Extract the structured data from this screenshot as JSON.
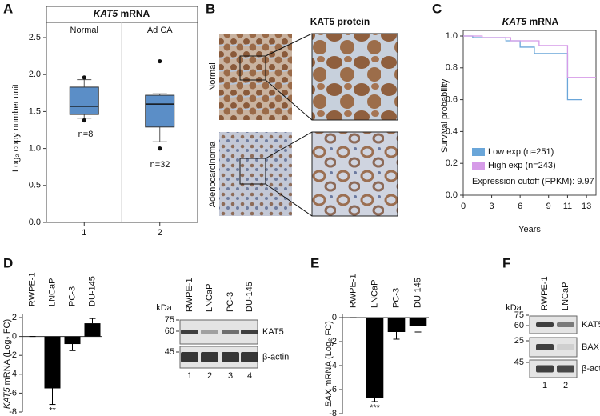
{
  "panel_letters": [
    "A",
    "B",
    "C",
    "D",
    "E",
    "F"
  ],
  "panel_b": {
    "title": "KAT5 protein",
    "rows": [
      "Normal",
      "Adenocarcinoma"
    ]
  },
  "blot_d": {
    "unit": "kDa",
    "lanes": [
      "RWPE-1",
      "LNCaP",
      "PC-3",
      "DU-145"
    ],
    "markers": [
      75,
      60,
      45
    ],
    "bands": [
      "KAT5",
      "β-actin"
    ],
    "lane_numbers": [
      1,
      2,
      3,
      4
    ]
  },
  "blot_f": {
    "unit": "kDa",
    "lanes": [
      "RWPE-1",
      "LNCaP"
    ],
    "markers": [
      75,
      60,
      25,
      45
    ],
    "bands": [
      "KAT5",
      "BAX",
      "β-actin"
    ],
    "lane_numbers": [
      1,
      2
    ]
  },
  "chart_data": [
    {
      "type": "box",
      "title": "KAT5 mRNA",
      "ylabel": "Log₂ copy number unit",
      "categories": [
        "1",
        "2"
      ],
      "group_labels": [
        "Normal",
        "Ad CA"
      ],
      "color": "#5b8ec7",
      "boxes": [
        {
          "whislo": 1.41,
          "q1": 1.46,
          "median": 1.57,
          "q3": 1.83,
          "whishi": 1.93,
          "fliers": [
            1.96,
            1.38
          ]
        },
        {
          "whislo": 1.09,
          "q1": 1.29,
          "median": 1.6,
          "q3": 1.72,
          "whishi": 1.74,
          "fliers": [
            2.18,
            1.0
          ]
        }
      ],
      "annotations": [
        "n=8",
        "n=32"
      ],
      "ylim": [
        0,
        2.5
      ],
      "yticks": [
        {
          "value": 0,
          "label": "0.0"
        },
        0.5,
        {
          "value": 1,
          "label": "1.0"
        },
        1.5,
        {
          "value": 2,
          "label": "2.0"
        },
        2.5
      ]
    },
    {
      "type": "line",
      "title": "KAT5 mRNA",
      "xlabel": "Years",
      "ylabel": "Survival probability",
      "xlim": [
        0,
        14
      ],
      "xticks": [
        0,
        3,
        6,
        9,
        11,
        13
      ],
      "ylim": [
        0,
        1
      ],
      "yticks": [
        {
          "value": 0,
          "label": "0.0"
        },
        0.2,
        0.4,
        0.6,
        0.8,
        {
          "value": 1,
          "label": "1.0"
        }
      ],
      "series": [
        {
          "name": "Low exp (n=251)",
          "color": "#6aa6d9",
          "x": [
            0,
            1,
            1,
            4.5,
            4.5,
            6,
            6,
            7.5,
            7.5,
            11,
            11,
            12.5
          ],
          "values": [
            1,
            1,
            0.99,
            0.99,
            0.97,
            0.97,
            0.93,
            0.93,
            0.89,
            0.89,
            0.6,
            0.6
          ]
        },
        {
          "name": "High exp (n=243)",
          "color": "#d69be8",
          "x": [
            0,
            2,
            2,
            5,
            5,
            8,
            8,
            11,
            11,
            14
          ],
          "values": [
            1,
            1,
            0.99,
            0.99,
            0.97,
            0.97,
            0.94,
            0.94,
            0.74,
            0.74
          ]
        }
      ],
      "annotation": "Expression cutoff (FPKM): 9.97"
    },
    {
      "type": "bar",
      "ylabel": "KAT5 mRNA (Log₂ FC)",
      "categories": [
        "RWPE-1",
        "LNCaP",
        "PC-3",
        "DU-145"
      ],
      "values": [
        0,
        -5.5,
        -0.8,
        1.4
      ],
      "errors": [
        0,
        1.7,
        0.7,
        0.5
      ],
      "significance": [
        null,
        "**",
        null,
        null
      ],
      "color": "#000000",
      "ylim": [
        -8,
        2
      ],
      "yticks": [
        -8,
        -6,
        -4,
        -2,
        0,
        2
      ]
    },
    {
      "type": "bar",
      "ylabel": "BAX mRNA (Log₂ FC)",
      "categories": [
        "RWPE-1",
        "LNCaP",
        "PC-3",
        "DU-145"
      ],
      "values": [
        0,
        -6.7,
        -1.2,
        -0.7
      ],
      "errors": [
        0,
        0.3,
        0.6,
        0.5
      ],
      "significance": [
        null,
        "***",
        null,
        null
      ],
      "color": "#000000",
      "ylim": [
        -8,
        0
      ],
      "yticks": [
        -8,
        -6,
        -4,
        -2,
        0
      ]
    }
  ]
}
